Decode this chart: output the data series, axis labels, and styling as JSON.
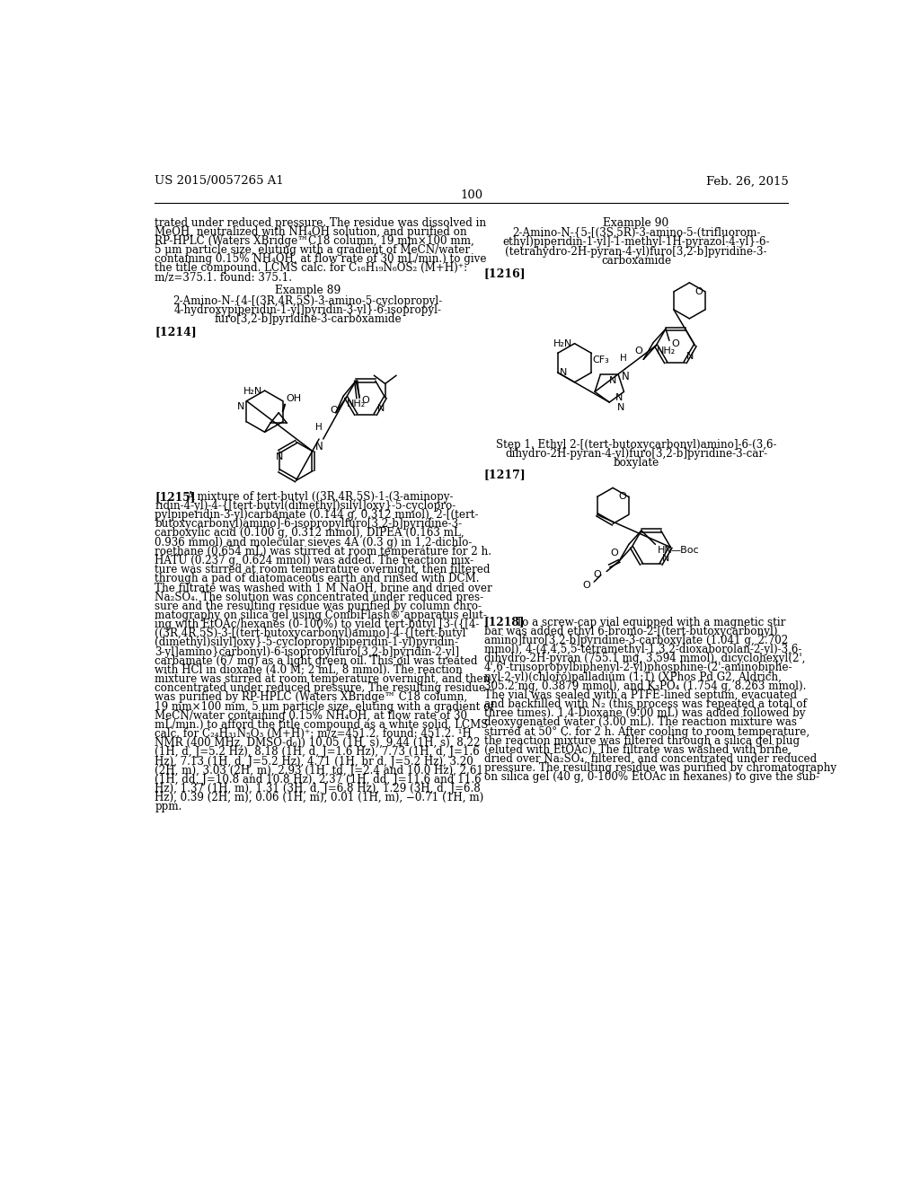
{
  "background_color": "#ffffff",
  "page_number": "100",
  "header_left": "US 2015/0057265 A1",
  "header_right": "Feb. 26, 2015",
  "left_col_lines": [
    "trated under reduced pressure. The residue was dissolved in",
    "MeOH, neutralized with NH₄OH solution, and purified on",
    "RP-HPLC (Waters XBridge™C18 column, 19 mm×100 mm,",
    "5 μm particle size, eluting with a gradient of MeCN/water",
    "containing 0.15% NH₄OH, at flow rate of 30 mL/min.) to give",
    "the title compound. LCMS calc. for C₁₆H₁₉N₆OS₂ (M+H)⁺:",
    "m/z=375.1. found: 375.1."
  ],
  "example89_title": "Example 89",
  "example89_name_lines": [
    "2-Amino-N-{4-[(3R,4R,5S)-3-amino-5-cyclopropyl-",
    "4-hydroxypiperidin-1-yl]pyridin-3-yl}-6-isopropyl-",
    "furo[3,2-b]pyridine-3-carboxamide"
  ],
  "label1214": "[1214]",
  "para1215_label": "[1215]",
  "para1215_lines": [
    "A mixture of tert-butyl ((3R,4R,5S)-1-(3-aminopy-",
    "ridin-4-yl)-4-{[tert-butyl(dimethyl)silyl]oxy}-5-cyclopro-",
    "pylpiperidin-3-yl)carbamate (0.144 g, 0.312 mmol), 2-[(tert-",
    "butoxycarbonyl)amino]-6-isopropylfuro[3,2-b]pyridine-3-",
    "carboxylic acid (0.100 g, 0.312 mmol), DIPEA (0.163 mL,",
    "0.936 mmol) and molecular sieves 4A (0.3 g) in 1,2-dichlo-",
    "roethane (0.654 mL) was stirred at room temperature for 2 h.",
    "HATU (0.237 g, 0.624 mmol) was added. The reaction mix-",
    "ture was stirred at room temperature overnight, then filtered",
    "through a pad of diatomaceous earth and rinsed with DCM.",
    "The filtrate was washed with 1 M NaOH, brine and dried over",
    "Na₂SO₄. The solution was concentrated under reduced pres-",
    "sure and the resulting residue was purified by column chro-",
    "matography on silica gel using CombiFlash® apparatus elut-",
    "ing with EtOAc/hexanes (0-100%) to yield tert-butyl [3-({[4-",
    "((3R,4R,5S)-3-[(tert-butoxycarbonyl)amino]-4-{[tert-butyl",
    "(dimethyl)silyl]oxy}-5-cyclopropylpiperidin-1-yl)pyridin-",
    "3-yl]amino}carbonyl)-6-isopropylfuro[3,2-b]pyridin-2-yl]",
    "carbamate (67 mg) as a light green oil. This oil was treated",
    "with HCl in dioxane (4.0 M; 2 mL, 8 mmol). The reaction",
    "mixture was stirred at room temperature overnight, and then",
    "concentrated under reduced pressure. The resulting residue",
    "was purified by RP-HPLC (Waters XBridge™ C18 column,",
    "19 mm×100 mm, 5 μm particle size, eluting with a gradient of",
    "MeCN/water containing 0.15% NH₄OH, at flow rate of 30",
    "mL/min.) to afford the title compound as a white solid. LCMS",
    "calc. for C₂₄H₃₁N₅O₃ (M+H)⁺: m/z=451.2. found: 451.2. ¹H",
    "NMR (400 MHz, DMSO-d₆)) 10.05 (1H, s), 9.44 (1H, s), 8.22",
    "(1H, d, J=5.2 Hz), 8.18 (1H, d, J=1.6 Hz), 7.73 (1H, d, J=1.6",
    "Hz), 7.13 (1H, d, J=5.2 Hz), 4.71 (1H, br d, J=5.2 Hz), 3.20",
    "(2H, m), 3.03 (2H, m), 2.93 (1H, td, J=2.4 and 10.0 Hz), 2.61",
    "(1H, dd, J=10.8 and 10.8 Hz), 2.37 (1H, dd, J=11.6 and 11.6",
    "Hz), 1.37 (1H, m), 1.31 (3H, d, J=6.8 Hz), 1.29 (3H, d, J=6.8",
    "Hz), 0.39 (2H, m), 0.06 (1H, m), 0.01 (1H, m), −0.71 (1H, m)",
    "ppm."
  ],
  "example90_title": "Example 90",
  "example90_name_lines": [
    "2-Amino-N-{5-[(3S,5R)-3-amino-5-(trifluorom-",
    "ethyl)piperidin-1-yl]-1-methyl-1H-pyrazol-4-yl}-6-",
    "(tetrahydro-2H-pyran-4-yl)furo[3,2-b]pyridine-3-",
    "carboxamide"
  ],
  "label1216": "[1216]",
  "step1_lines": [
    "Step 1. Ethyl 2-[(tert-butoxycarbonyl)amino]-6-(3,6-",
    "dihydro-2H-pyran-4-yl)furo[3,2-b]pyridine-3-car-",
    "boxylate"
  ],
  "label1217": "[1217]",
  "label1218": "[1218]",
  "para1218_lines": [
    "To a screw-cap vial equipped with a magnetic stir",
    "bar was added ethyl 6-bromo-2-[(tert-butoxycarbonyl)",
    "amino]furo[3,2-b]pyridine-3-carboxylate (1.041 g, 2.702",
    "mmol), 4-(4,4,5,5-tetramethyl-1,3,2-dioxaborolan-2-yl)-3,6-",
    "dihydro-2H-pyran (755.1 mg, 3.594 mmol), dicyclohexyl(2',",
    "4',6'-triisopropylbiphenyl-2-yl)phosphine-(2'-aminobiphe-",
    "nyl-2-yl)(chloro)palladium (1:1) (XPhos Pd G2, Aldrich,",
    "305.2 mg, 0.3879 mmol), and K₃PO₄ (1.754 g, 8.263 mmol).",
    "The vial was sealed with a PTFE-lined septum, evacuated",
    "and backfilled with N₂ (this process was repeated a total of",
    "three times). 1,4-Dioxane (9.00 mL) was added followed by",
    "deoxygenated water (3.00 mL). The reaction mixture was",
    "stirred at 50° C. for 2 h. After cooling to room temperature,",
    "the reaction mixture was filtered through a silica gel plug",
    "(eluted with EtOAc). The filtrate was washed with brine,",
    "dried over Na₂SO₄, filtered, and concentrated under reduced",
    "pressure. The resulting residue was purified by chromatography",
    "on silica gel (40 g, 0-100% EtOAc in hexanes) to give the sub-"
  ]
}
